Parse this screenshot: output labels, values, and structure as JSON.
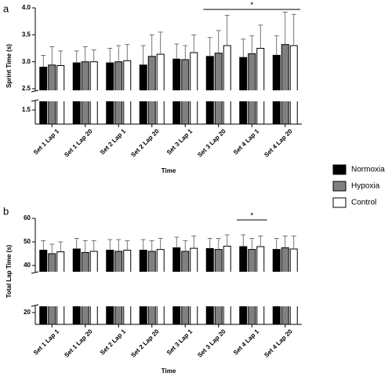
{
  "chart_data": [
    {
      "type": "bar",
      "panel_label": "a",
      "y_label": "Sprint Time (s)",
      "x_label": "Time",
      "categories": [
        "Set 1 Lap 1",
        "Set 1 Lap 20",
        "Set 2 Lap 1",
        "Set 2 Lap 20",
        "Set 3 Lap 1",
        "Set 3 Lap 20",
        "Set 4 Lap 1",
        "Set 4 Lap 20"
      ],
      "series": [
        {
          "name": "Normoxia",
          "color": "#000000",
          "values": [
            2.9,
            2.98,
            2.98,
            2.94,
            3.05,
            3.1,
            3.08,
            3.12
          ],
          "errors": [
            0.22,
            0.22,
            0.27,
            0.36,
            0.28,
            0.35,
            0.34,
            0.36
          ]
        },
        {
          "name": "Hypoxia",
          "color": "#808080",
          "values": [
            2.94,
            3.0,
            3.0,
            3.1,
            3.04,
            3.16,
            3.15,
            3.32
          ],
          "errors": [
            0.34,
            0.28,
            0.3,
            0.4,
            0.26,
            0.42,
            0.33,
            0.6
          ]
        },
        {
          "name": "Control",
          "color": "#ffffff",
          "values": [
            2.93,
            3.0,
            3.02,
            3.14,
            3.17,
            3.3,
            3.25,
            3.3
          ],
          "errors": [
            0.27,
            0.22,
            0.3,
            0.41,
            0.33,
            0.56,
            0.43,
            0.58
          ]
        }
      ],
      "ylim": [
        1.3,
        4.0
      ],
      "ybreak": [
        1.6,
        2.5
      ],
      "yticks": [
        {
          "value": 1.5,
          "label": "1.5"
        },
        {
          "value": 2.5,
          "label": "2.5"
        },
        {
          "value": 3.0,
          "label": "3.0"
        },
        {
          "value": 3.5,
          "label": "3.5"
        },
        {
          "value": 4.0,
          "label": "4.0"
        }
      ],
      "significance": {
        "from": "Set 3 Lap 20",
        "to": "Set 4 Lap 20",
        "label": "*"
      }
    },
    {
      "type": "bar",
      "panel_label": "b",
      "y_label": "Total Lap Time (s)",
      "x_label": "Time",
      "categories": [
        "Set 1 Lap 1",
        "Set 1 Lap 20",
        "Set 2 Lap 1",
        "Set 2 Lap 20",
        "Set 3 Lap 1",
        "Set 3 Lap 20",
        "Set 4 Lap 1",
        "Set 4 Lap 20"
      ],
      "series": [
        {
          "name": "Normoxia",
          "color": "#000000",
          "values": [
            46.5,
            47.0,
            46.5,
            46.5,
            47.5,
            47.2,
            48.0,
            46.8
          ],
          "errors": [
            4.0,
            4.5,
            4.5,
            4.5,
            4.5,
            4.3,
            5.0,
            4.7
          ]
        },
        {
          "name": "Hypoxia",
          "color": "#808080",
          "values": [
            45.0,
            45.5,
            46.0,
            46.0,
            46.0,
            46.8,
            46.8,
            47.5
          ],
          "errors": [
            4.0,
            5.0,
            5.0,
            4.5,
            4.5,
            4.7,
            4.7,
            5.0
          ]
        },
        {
          "name": "Control",
          "color": "#ffffff",
          "values": [
            45.8,
            46.0,
            46.5,
            46.8,
            47.3,
            48.2,
            48.0,
            47.0
          ],
          "errors": [
            4.2,
            4.5,
            4.0,
            4.7,
            5.2,
            4.8,
            4.5,
            5.5
          ]
        }
      ],
      "ylim": [
        15,
        60
      ],
      "ybreak": [
        22,
        38
      ],
      "yticks": [
        20,
        40,
        50,
        60
      ],
      "significance": {
        "from": "Set 4 Lap 1",
        "to": "Set 4 Lap 1",
        "label": "*"
      }
    }
  ]
}
